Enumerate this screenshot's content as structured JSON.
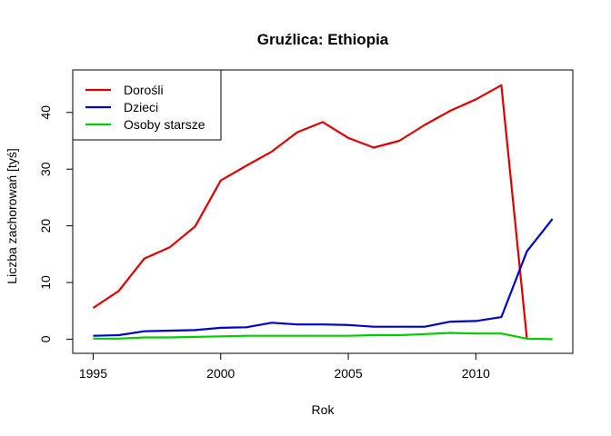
{
  "chart_data": {
    "type": "line",
    "title": "Gruźlica: Ethiopia",
    "xlabel": "Rok",
    "ylabel": "Liczba zachorowań [tyś]",
    "xlim": [
      1994.2,
      2013.8
    ],
    "ylim": [
      -2.5,
      47.5
    ],
    "x_ticks": [
      1995,
      2000,
      2005,
      2010
    ],
    "y_ticks": [
      0,
      10,
      20,
      30,
      40
    ],
    "grid": false,
    "legend_position": "top-left",
    "x": [
      1995,
      1996,
      1997,
      1998,
      1999,
      2000,
      2001,
      2002,
      2003,
      2004,
      2005,
      2006,
      2007,
      2008,
      2009,
      2010,
      2011,
      2012,
      2013
    ],
    "series": [
      {
        "name": "Dorośli",
        "color": "#dd0000",
        "values": [
          5.5,
          8.5,
          14.2,
          16.2,
          19.9,
          28.0,
          30.6,
          33.1,
          36.5,
          38.3,
          35.5,
          33.8,
          35.0,
          37.8,
          40.3,
          42.3,
          44.8,
          0.1,
          null
        ]
      },
      {
        "name": "Dzieci",
        "color": "#0000cc",
        "values": [
          0.6,
          0.7,
          1.4,
          1.5,
          1.6,
          2.0,
          2.1,
          2.9,
          2.6,
          2.6,
          2.5,
          2.2,
          2.2,
          2.2,
          3.1,
          3.2,
          3.9,
          15.5,
          21.2
        ]
      },
      {
        "name": "Osoby starsze",
        "color": "#00cc00",
        "values": [
          0.1,
          0.1,
          0.3,
          0.3,
          0.4,
          0.5,
          0.6,
          0.6,
          0.6,
          0.6,
          0.6,
          0.7,
          0.7,
          0.9,
          1.1,
          1.0,
          1.0,
          0.1,
          0.0
        ]
      }
    ]
  }
}
